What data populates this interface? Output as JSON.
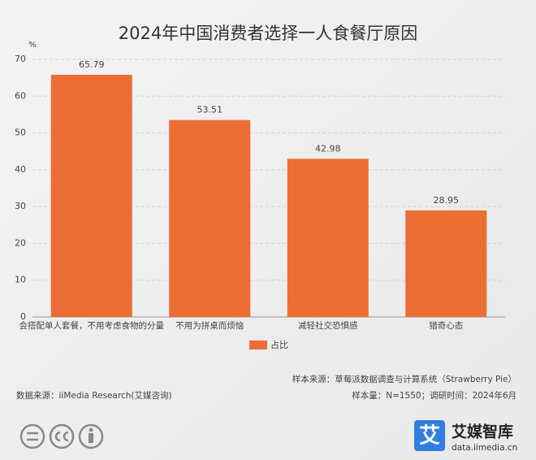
{
  "chart_data": {
    "type": "bar",
    "title": "2024年中国消费者选择一人食餐厅原因",
    "y_unit": "%",
    "categories": [
      "会搭配单人套餐，不用考虑食物的分量",
      "不用为拼桌而烦恼",
      "减轻社交恐惧感",
      "猎奇心态"
    ],
    "series": [
      {
        "name": "占比",
        "color": "#ec6d34",
        "values": [
          65.79,
          53.51,
          42.98,
          28.95
        ]
      }
    ],
    "ylim": [
      0,
      70
    ],
    "yticks": [
      0,
      10,
      20,
      30,
      40,
      50,
      60,
      70
    ],
    "grid": true,
    "legend": "bottom"
  },
  "footer": {
    "sample_source": "样本来源：草莓派数据调查与计算系统（Strawberry Pie）",
    "data_source": "数据来源：iiMedia Research(艾媒咨询)",
    "sample_info": "样本量：N=1550；调研时间：2024年6月"
  },
  "logo": {
    "mark": "艾",
    "name": "艾媒智库",
    "url": "data.iimedia.cn"
  }
}
